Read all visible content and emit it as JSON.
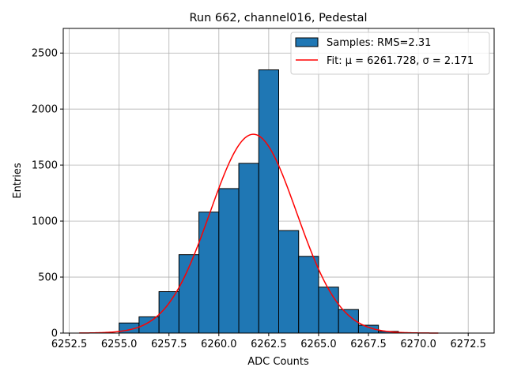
{
  "chart_data": {
    "type": "bar",
    "title": "Run 662, channel016, Pedestal",
    "xlabel": "ADC Counts",
    "ylabel": "Entries",
    "xlim": [
      6252.2,
      6273.8
    ],
    "ylim": [
      0,
      2720
    ],
    "xticks": [
      6252.5,
      6255.0,
      6257.5,
      6260.0,
      6262.5,
      6265.0,
      6267.5,
      6270.0,
      6272.5
    ],
    "xtick_labels": [
      "6252.5",
      "6255.0",
      "6257.5",
      "6260.0",
      "6262.5",
      "6265.0",
      "6267.5",
      "6270.0",
      "6272.5"
    ],
    "yticks": [
      0,
      500,
      1000,
      1500,
      2000,
      2500
    ],
    "ytick_labels": [
      "0",
      "500",
      "1000",
      "1500",
      "2000",
      "2500"
    ],
    "grid": true,
    "legend_position": "top-right",
    "bins": [
      {
        "x0": 6255,
        "x1": 6256,
        "count": 90
      },
      {
        "x0": 6256,
        "x1": 6257,
        "count": 145
      },
      {
        "x0": 6257,
        "x1": 6258,
        "count": 370
      },
      {
        "x0": 6258,
        "x1": 6259,
        "count": 700
      },
      {
        "x0": 6259,
        "x1": 6260,
        "count": 1080
      },
      {
        "x0": 6260,
        "x1": 6261,
        "count": 1290
      },
      {
        "x0": 6261,
        "x1": 6262,
        "count": 1515
      },
      {
        "x0": 6262,
        "x1": 6263,
        "count": 2350
      },
      {
        "x0": 6263,
        "x1": 6264,
        "count": 915
      },
      {
        "x0": 6264,
        "x1": 6265,
        "count": 685
      },
      {
        "x0": 6265,
        "x1": 6266,
        "count": 410
      },
      {
        "x0": 6266,
        "x1": 6267,
        "count": 210
      },
      {
        "x0": 6267,
        "x1": 6268,
        "count": 70
      },
      {
        "x0": 6268,
        "x1": 6269,
        "count": 15
      }
    ],
    "series": [
      {
        "name": "Samples: RMS=2.31",
        "kind": "histogram",
        "color": "#1f77b4"
      },
      {
        "name": "Fit: μ = 6261.728, σ = 2.171",
        "kind": "gaussian-fit",
        "color": "#ff0000",
        "mu": 6261.728,
        "sigma": 2.171,
        "amplitude": 1775,
        "x_range": [
          6253.0,
          6271.0
        ]
      }
    ]
  }
}
